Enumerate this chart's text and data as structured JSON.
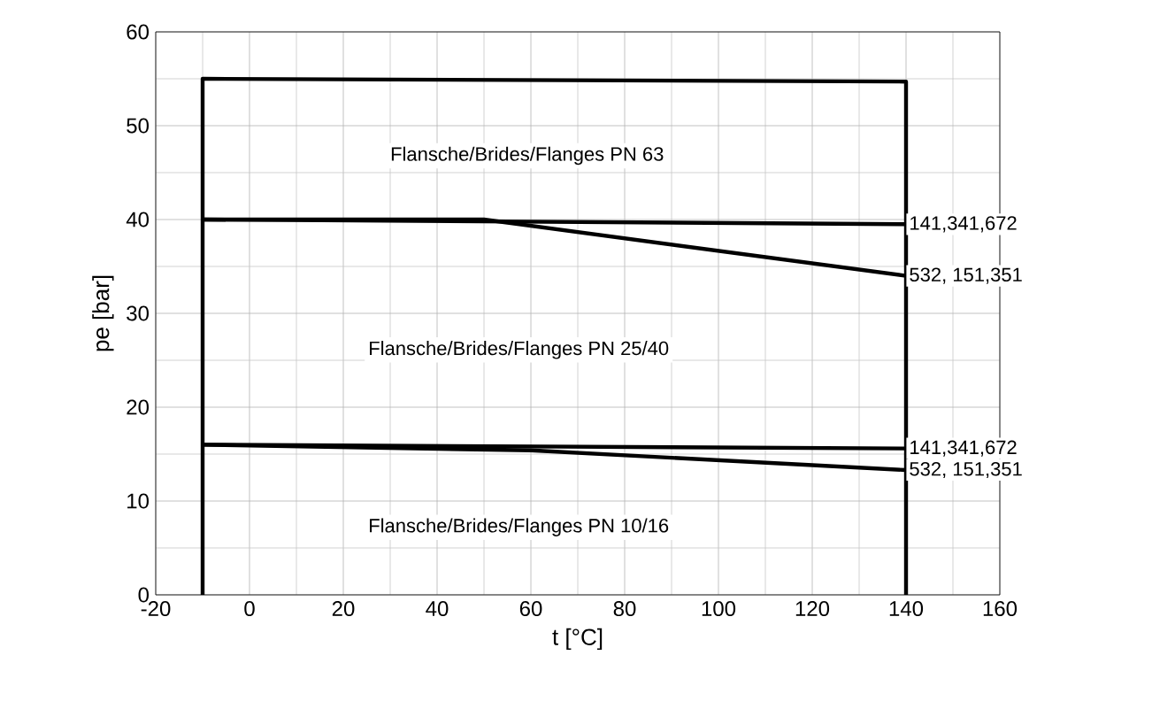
{
  "chart_data": {
    "type": "line",
    "xlabel": "t [°C]",
    "ylabel": "pe [bar]",
    "xlim": [
      -20,
      160
    ],
    "xticks": [
      -20,
      0,
      20,
      40,
      60,
      80,
      100,
      120,
      140,
      160
    ],
    "ylim": [
      0,
      60
    ],
    "yticks": [
      0,
      10,
      20,
      30,
      40,
      50,
      60
    ],
    "grid": true,
    "series": [
      {
        "color": "#000000",
        "x": [
          -10,
          -10,
          140,
          140
        ],
        "values": [
          0,
          55,
          54.7,
          0
        ]
      },
      {
        "name": "141,341,672",
        "color": "#000000",
        "x": [
          -10,
          140
        ],
        "values": [
          40,
          39.5
        ]
      },
      {
        "name": "532, 151,351",
        "color": "#000000",
        "x": [
          -10,
          50,
          140
        ],
        "values": [
          40,
          40,
          34
        ]
      },
      {
        "name": "141,341,672",
        "color": "#000000",
        "x": [
          -10,
          140
        ],
        "values": [
          16,
          15.6
        ]
      },
      {
        "name": "532, 151,351",
        "color": "#000000",
        "x": [
          -10,
          60,
          140
        ],
        "values": [
          16,
          15.4,
          13.3
        ]
      }
    ],
    "annotations": [
      "Flansche/Brides/Flanges  PN 63",
      "Flansche/Brides/Flanges  PN 25/40",
      "Flansche/Brides/Flanges  PN 10/16"
    ]
  }
}
